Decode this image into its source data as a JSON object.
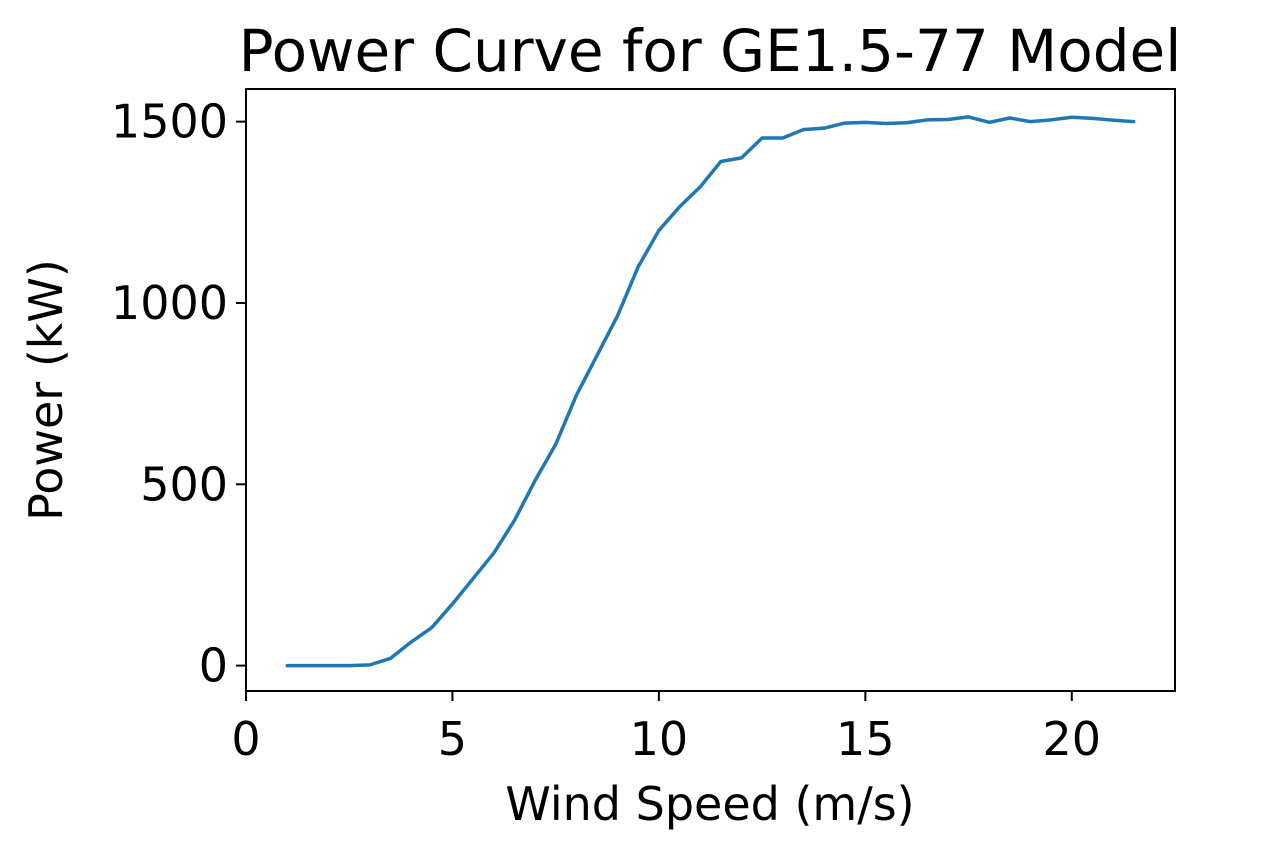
{
  "chart_data": {
    "type": "line",
    "title": "Power Curve for GE1.5-77 Model",
    "xlabel": "Wind Speed (m/s)",
    "ylabel": "Power (kW)",
    "xlim": [
      0,
      22.5
    ],
    "ylim": [
      -70,
      1590
    ],
    "x_ticks": [
      0,
      5,
      10,
      15,
      20
    ],
    "y_ticks": [
      0,
      500,
      1000,
      1500
    ],
    "x_tick_labels": [
      "0",
      "5",
      "10",
      "15",
      "20"
    ],
    "y_tick_labels": [
      "0",
      "500",
      "1000",
      "1500"
    ],
    "grid": false,
    "legend": false,
    "series": [
      {
        "color": "#1f77b4",
        "x": [
          1,
          1.5,
          2,
          2.5,
          3,
          3.5,
          4,
          4.5,
          5,
          5.5,
          6,
          6.5,
          7,
          7.5,
          8,
          8.5,
          9,
          9.5,
          10,
          10.5,
          11,
          11.5,
          12,
          12.5,
          13,
          13.5,
          14,
          14.5,
          15,
          15.5,
          16,
          16.5,
          17,
          17.5,
          18,
          18.5,
          19,
          19.5,
          20,
          20.5,
          21,
          21.5
        ],
        "y": [
          0,
          0,
          0,
          0,
          2,
          20,
          65,
          105,
          170,
          240,
          310,
          400,
          510,
          610,
          745,
          855,
          965,
          1100,
          1200,
          1265,
          1320,
          1390,
          1400,
          1455,
          1455,
          1478,
          1482,
          1496,
          1498,
          1495,
          1497,
          1505,
          1506,
          1513,
          1498,
          1510,
          1500,
          1505,
          1512,
          1509,
          1504,
          1500
        ]
      }
    ]
  }
}
